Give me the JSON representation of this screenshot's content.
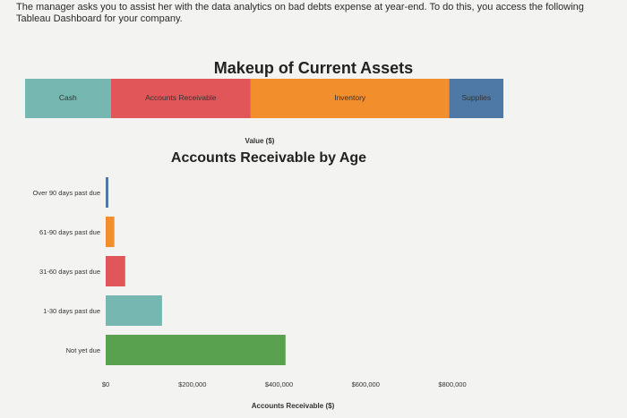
{
  "intro_text": "The manager asks you to assist her with the data analytics on bad debts expense at year-end. To do this, you access the following Tableau Dashboard for your company.",
  "stack_chart": {
    "type": "bar",
    "title": "Makeup of Current Assets",
    "xlabel": "Value ($)",
    "segments": [
      {
        "label": "Cash",
        "value": 95000,
        "color": "#76b7b2"
      },
      {
        "label": "Accounts Receivable",
        "value": 155000,
        "color": "#e15759"
      },
      {
        "label": "Inventory",
        "value": 220000,
        "color": "#f28e2b"
      },
      {
        "label": "Supplies",
        "value": 60000,
        "color": "#4e79a7"
      }
    ]
  },
  "chart_data": {
    "type": "bar",
    "title": "Accounts Receivable by Age",
    "xlabel": "Accounts Receivable ($)",
    "ylabel": "",
    "categories": [
      "Over 90 days past due",
      "61-90 days past due",
      "31-60 days past due",
      "1-30 days past due",
      "Not yet due"
    ],
    "values": [
      5000,
      20000,
      45000,
      130000,
      415000
    ],
    "colors": [
      "#4e79a7",
      "#f28e2b",
      "#e15759",
      "#76b7b2",
      "#59a14f"
    ],
    "xlim": [
      0,
      800000
    ],
    "ticks": [
      0,
      200000,
      400000,
      600000,
      800000
    ],
    "tick_labels": [
      "$0",
      "$200,000",
      "$400,000",
      "$600,000",
      "$800,000"
    ],
    "grid": false
  }
}
